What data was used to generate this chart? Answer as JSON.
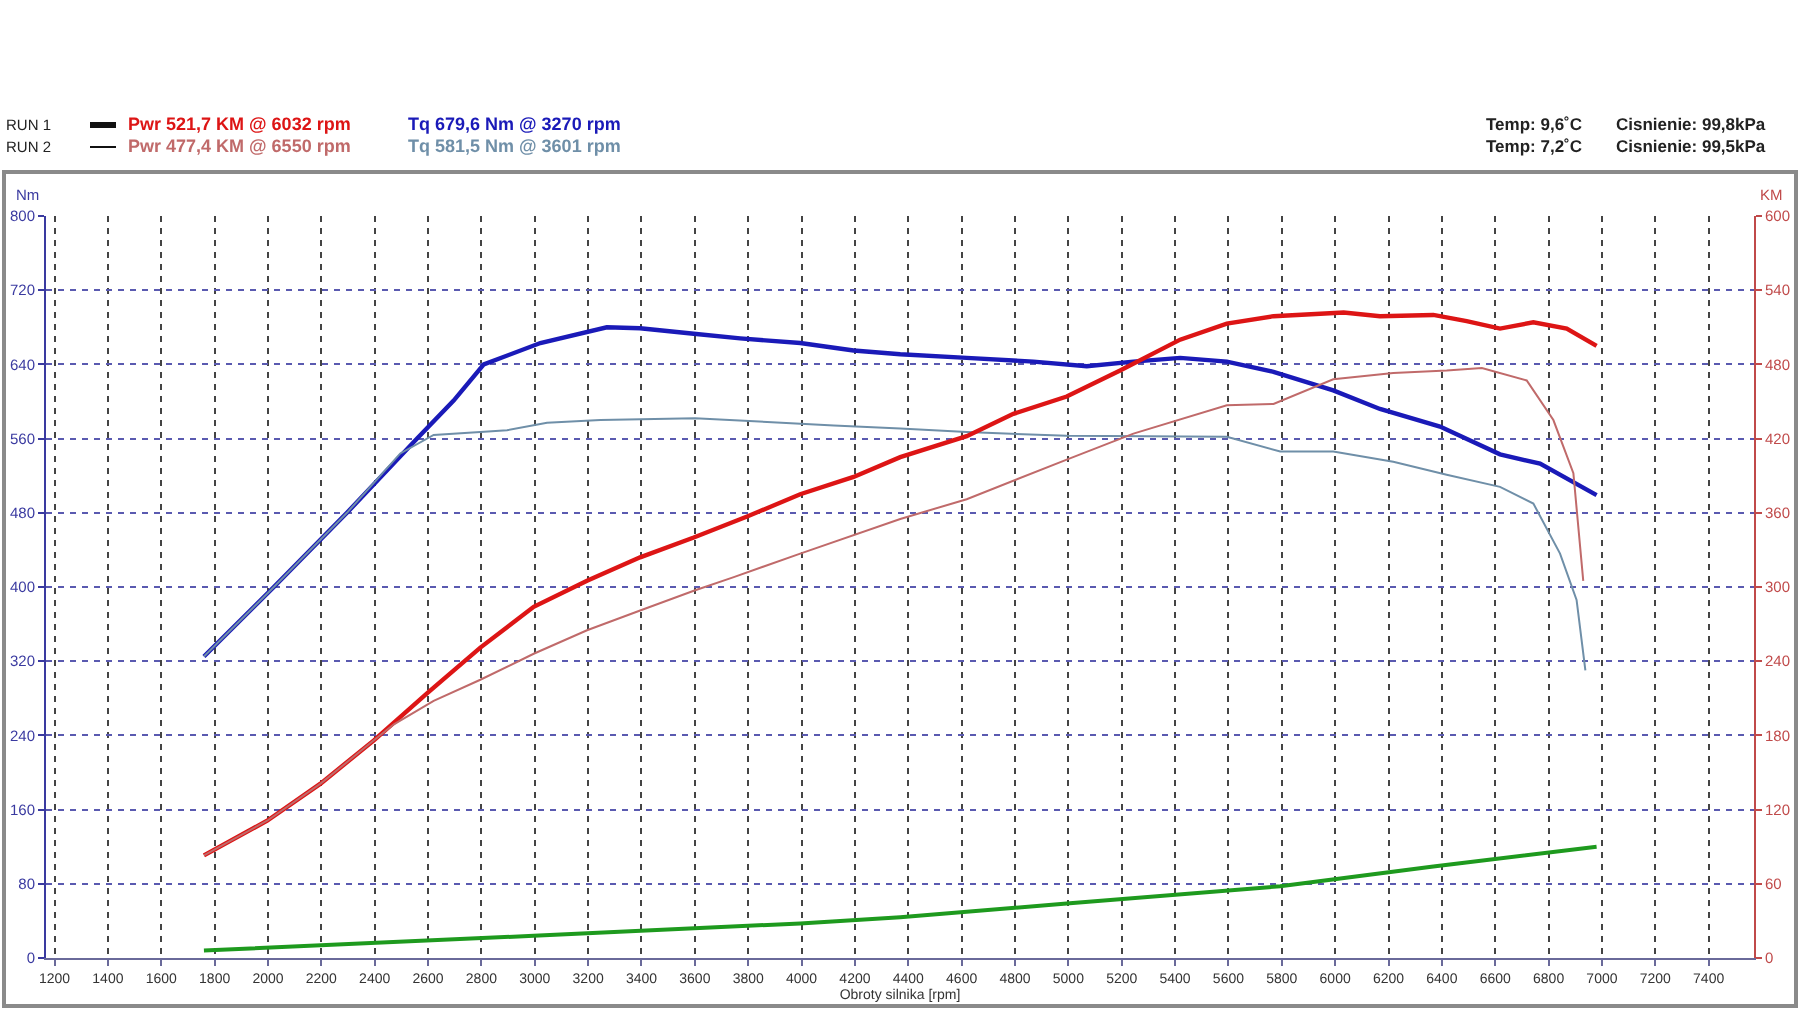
{
  "chart_data": {
    "type": "line",
    "xlabel": "Obroty silnika [rpm]",
    "ylabel": "Nm",
    "y2label": "KM",
    "annotations": [
      "RUN 1",
      "Temp: 9,6˚C",
      "Cisnienie: 99,8kPa",
      "RUN 2",
      "Temp: 7,2˚C",
      "Cisnienie: 99,5kPa"
    ],
    "xlim": [
      1168,
      7570
    ],
    "xticks": [
      1200,
      1400,
      1600,
      1800,
      2000,
      2200,
      2400,
      2600,
      2800,
      3000,
      3200,
      3400,
      3600,
      3800,
      4000,
      4200,
      4400,
      4600,
      4800,
      5000,
      5200,
      5400,
      5600,
      5800,
      6000,
      6200,
      6400,
      6600,
      6800,
      7000,
      7200,
      7400
    ],
    "ylim": [
      0,
      800
    ],
    "yticks": [
      0,
      80,
      160,
      240,
      320,
      400,
      480,
      560,
      640,
      720,
      800
    ],
    "y2lim": [
      0,
      600
    ],
    "y2ticks": [
      0,
      60,
      120,
      180,
      240,
      300,
      360,
      420,
      480,
      540,
      600
    ],
    "grid": true,
    "legend": "top left",
    "series": [
      {
        "name": "Pwr 521,7 KM @ 6032 rpm",
        "color": "#dd1515",
        "axis": "y2",
        "x": [
          1760,
          1997,
          2197,
          2397,
          2596,
          2796,
          2996,
          3196,
          3395,
          3596,
          3796,
          3995,
          4195,
          4370,
          4619,
          4794,
          4994,
          5194,
          5419,
          5594,
          5769,
          6032,
          6168,
          6368,
          6493,
          6618,
          6743,
          6868,
          6980
        ],
        "values": [
          83,
          111,
          141,
          176,
          214,
          251,
          284,
          305,
          324,
          340,
          357,
          375,
          389,
          405,
          422,
          440,
          454,
          475,
          500,
          513,
          519,
          522,
          519,
          520,
          515,
          509,
          514,
          509,
          495
        ]
      },
      {
        "name": "Tq 679,6 Nm @ 3270 rpm",
        "color": "#1a1ab8",
        "x": [
          1760,
          2022,
          2296,
          2559,
          2696,
          2809,
          3021,
          3270,
          3395,
          3596,
          3770,
          3995,
          4195,
          4370,
          4619,
          4869,
          5069,
          5244,
          5419,
          5594,
          5769,
          5993,
          6168,
          6393,
          6618,
          6768,
          6980
        ],
        "values": [
          325,
          400,
          480,
          560,
          601,
          640,
          663,
          680,
          679,
          673,
          668,
          663,
          655,
          651,
          647,
          643,
          638,
          643,
          647,
          643,
          632,
          612,
          592,
          573,
          543,
          533,
          499
        ]
      },
      {
        "name": "Pwr 477,4 KM @ 6550 rpm",
        "color": "#c06a6a",
        "axis": "y2",
        "x": [
          1760,
          1997,
          2197,
          2397,
          2472,
          2621,
          2796,
          2996,
          3196,
          3395,
          3596,
          3746,
          3995,
          4370,
          4619,
          4994,
          5244,
          5594,
          5769,
          5993,
          6218,
          6418,
          6550,
          6718,
          6818,
          6893,
          6930
        ],
        "values": [
          83,
          111,
          141,
          176,
          189,
          208,
          225,
          246,
          265,
          281,
          297,
          308,
          327,
          355,
          371,
          403,
          424,
          447,
          448,
          468,
          473,
          475,
          477,
          467,
          435,
          392,
          305
        ]
      },
      {
        "name": "Tq 581,5 Nm @ 3601 rpm",
        "color": "#6f8fa8",
        "x": [
          1760,
          2022,
          2296,
          2496,
          2621,
          2796,
          2896,
          3046,
          3246,
          3601,
          3871,
          4121,
          4370,
          4619,
          4994,
          5594,
          5794,
          5993,
          6218,
          6418,
          6618,
          6743,
          6843,
          6905,
          6938
        ],
        "values": [
          325,
          400,
          480,
          544,
          564,
          567,
          569,
          577,
          580,
          582,
          578,
          574,
          571,
          567,
          563,
          562,
          546,
          546,
          535,
          521,
          508,
          490,
          436,
          386,
          310
        ]
      },
      {
        "color": "#1e9a1e",
        "axis": "y2",
        "x": [
          1760,
          2996,
          3995,
          4370,
          4994,
          5794,
          6368,
          6980
        ],
        "values": [
          6,
          18,
          28,
          33,
          44,
          58,
          74,
          90
        ]
      }
    ]
  }
}
